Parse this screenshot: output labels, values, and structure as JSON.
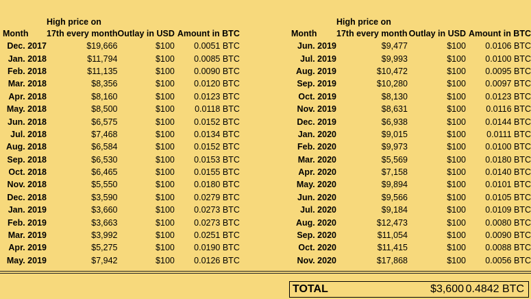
{
  "headers": {
    "month": "Month",
    "price_line1": "High price on",
    "price_line2": "17th every month",
    "outlay": "Outlay in USD",
    "amount": "Amount in BTC"
  },
  "left_rows": [
    {
      "month": "Dec. 2017",
      "price": "$19,666",
      "outlay": "$100",
      "amount": "0.0051 BTC"
    },
    {
      "month": "Jan. 2018",
      "price": "$11,794",
      "outlay": "$100",
      "amount": "0.0085 BTC"
    },
    {
      "month": "Feb. 2018",
      "price": "$11,135",
      "outlay": "$100",
      "amount": "0.0090 BTC"
    },
    {
      "month": "Mar. 2018",
      "price": "$8,356",
      "outlay": "$100",
      "amount": "0.0120 BTC"
    },
    {
      "month": "Apr. 2018",
      "price": "$8,160",
      "outlay": "$100",
      "amount": "0.0123 BTC"
    },
    {
      "month": "May. 2018",
      "price": "$8,500",
      "outlay": "$100",
      "amount": "0.0118 BTC"
    },
    {
      "month": "Jun. 2018",
      "price": "$6,575",
      "outlay": "$100",
      "amount": "0.0152 BTC"
    },
    {
      "month": "Jul. 2018",
      "price": "$7,468",
      "outlay": "$100",
      "amount": "0.0134 BTC"
    },
    {
      "month": "Aug. 2018",
      "price": "$6,584",
      "outlay": "$100",
      "amount": "0.0152 BTC"
    },
    {
      "month": "Sep. 2018",
      "price": "$6,530",
      "outlay": "$100",
      "amount": "0.0153 BTC"
    },
    {
      "month": "Oct. 2018",
      "price": "$6,465",
      "outlay": "$100",
      "amount": "0.0155 BTC"
    },
    {
      "month": "Nov. 2018",
      "price": "$5,550",
      "outlay": "$100",
      "amount": "0.0180 BTC"
    },
    {
      "month": "Dec. 2018",
      "price": "$3,590",
      "outlay": "$100",
      "amount": "0.0279 BTC"
    },
    {
      "month": "Jan. 2019",
      "price": "$3,660",
      "outlay": "$100",
      "amount": "0.0273 BTC"
    },
    {
      "month": "Feb. 2019",
      "price": "$3,663",
      "outlay": "$100",
      "amount": "0.0273 BTC"
    },
    {
      "month": "Mar. 2019",
      "price": "$3,992",
      "outlay": "$100",
      "amount": "0.0251 BTC"
    },
    {
      "month": "Apr. 2019",
      "price": "$5,275",
      "outlay": "$100",
      "amount": "0.0190 BTC"
    },
    {
      "month": "May. 2019",
      "price": "$7,942",
      "outlay": "$100",
      "amount": "0.0126 BTC"
    }
  ],
  "right_rows": [
    {
      "month": "Jun. 2019",
      "price": "$9,477",
      "outlay": "$100",
      "amount": "0.0106 BTC"
    },
    {
      "month": "Jul. 2019",
      "price": "$9,993",
      "outlay": "$100",
      "amount": "0.0100 BTC"
    },
    {
      "month": "Aug. 2019",
      "price": "$10,472",
      "outlay": "$100",
      "amount": "0.0095 BTC"
    },
    {
      "month": "Sep. 2019",
      "price": "$10,280",
      "outlay": "$100",
      "amount": "0.0097 BTC"
    },
    {
      "month": "Oct. 2019",
      "price": "$8,130",
      "outlay": "$100",
      "amount": "0.0123 BTC"
    },
    {
      "month": "Nov. 2019",
      "price": "$8,631",
      "outlay": "$100",
      "amount": "0.0116 BTC"
    },
    {
      "month": "Dec. 2019",
      "price": "$6,938",
      "outlay": "$100",
      "amount": "0.0144 BTC"
    },
    {
      "month": "Jan. 2020",
      "price": "$9,015",
      "outlay": "$100",
      "amount": "0.0111 BTC"
    },
    {
      "month": "Feb. 2020",
      "price": "$9,973",
      "outlay": "$100",
      "amount": "0.0100 BTC"
    },
    {
      "month": "Mar. 2020",
      "price": "$5,569",
      "outlay": "$100",
      "amount": "0.0180 BTC"
    },
    {
      "month": "Apr. 2020",
      "price": "$7,158",
      "outlay": "$100",
      "amount": "0.0140 BTC"
    },
    {
      "month": "May. 2020",
      "price": "$9,894",
      "outlay": "$100",
      "amount": "0.0101 BTC"
    },
    {
      "month": "Jun. 2020",
      "price": "$9,566",
      "outlay": "$100",
      "amount": "0.0105 BTC"
    },
    {
      "month": "Jul. 2020",
      "price": "$9,184",
      "outlay": "$100",
      "amount": "0.0109 BTC"
    },
    {
      "month": "Aug. 2020",
      "price": "$12,473",
      "outlay": "$100",
      "amount": "0.0080 BTC"
    },
    {
      "month": "Sep. 2020",
      "price": "$11,054",
      "outlay": "$100",
      "amount": "0.0090 BTC"
    },
    {
      "month": "Oct. 2020",
      "price": "$11,415",
      "outlay": "$100",
      "amount": "0.0088 BTC"
    },
    {
      "month": "Nov. 2020",
      "price": "$17,868",
      "outlay": "$100",
      "amount": "0.0056 BTC"
    }
  ],
  "total": {
    "label": "TOTAL",
    "usd": "$3,600",
    "btc": "0.4842 BTC"
  }
}
